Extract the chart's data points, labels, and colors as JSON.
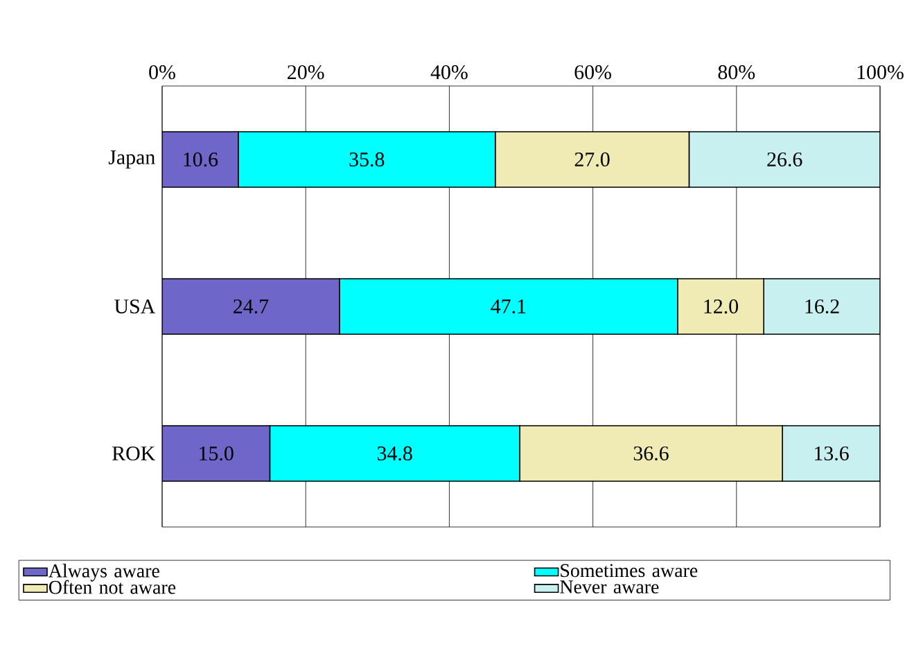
{
  "chart_data": {
    "type": "bar",
    "orientation": "horizontal",
    "stacked": true,
    "categories": [
      "Japan",
      "USA",
      "ROK"
    ],
    "series": [
      {
        "name": "Always aware",
        "color": "#6e66c8",
        "values": [
          10.6,
          24.7,
          15.0
        ],
        "value_labels": [
          "10.6",
          "24.7",
          "15.0"
        ]
      },
      {
        "name": "Sometimes aware",
        "color": "#00ffff",
        "values": [
          35.8,
          47.1,
          34.8
        ],
        "value_labels": [
          "35.8",
          "47.1",
          "34.8"
        ]
      },
      {
        "name": "Often not aware",
        "color": "#f0ebb4",
        "values": [
          27.0,
          12.0,
          36.6
        ],
        "value_labels": [
          "27.0",
          "12.0",
          "36.6"
        ]
      },
      {
        "name": "Never aware",
        "color": "#c8f0f0",
        "values": [
          26.6,
          16.2,
          13.6
        ],
        "value_labels": [
          "26.6",
          "16.2",
          "13.6"
        ]
      }
    ],
    "xlim": [
      0,
      100
    ],
    "xticks": [
      {
        "value": 0,
        "label": "0%"
      },
      {
        "value": 20,
        "label": "20%"
      },
      {
        "value": 40,
        "label": "40%"
      },
      {
        "value": 60,
        "label": "60%"
      },
      {
        "value": 80,
        "label": "80%"
      },
      {
        "value": 100,
        "label": "100%"
      }
    ],
    "grid": "x",
    "legend": "bottom"
  }
}
